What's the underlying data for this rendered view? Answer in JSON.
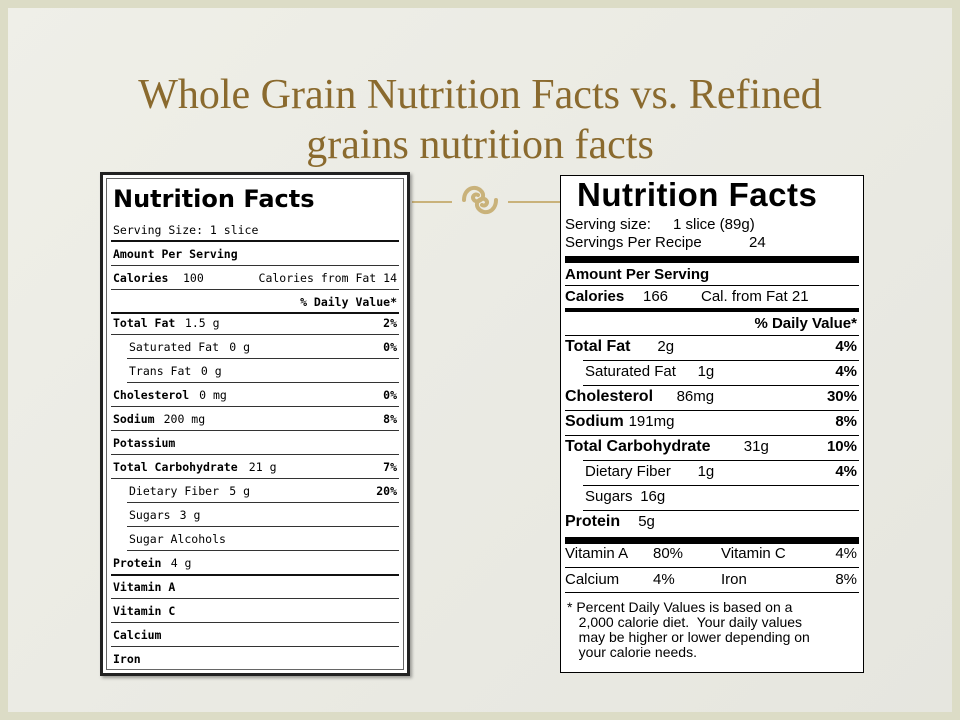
{
  "slide": {
    "title_line1": "Whole Grain Nutrition Facts vs. Refined",
    "title_line2": "grains nutrition facts",
    "divider_icon": "",
    "divider_icon_name": "ornament-icon",
    "accent_color": "#c9b27a",
    "title_color": "#8a6a2e"
  },
  "left_label": {
    "title": "Nutrition Facts",
    "serving_size": "Serving Size: 1 slice",
    "amount_per_serving": "Amount Per Serving",
    "calories_label": "Calories",
    "calories_value": "100",
    "calories_from_fat": "Calories from Fat  14",
    "daily_value_header": "% Daily Value*",
    "rows": [
      {
        "label": "Total Fat",
        "amount": "1.5 g",
        "dv": "2%"
      },
      {
        "label": "Saturated Fat",
        "amount": "0 g",
        "dv": "0%"
      },
      {
        "label": "Trans Fat",
        "amount": "0 g",
        "dv": ""
      },
      {
        "label": "Cholesterol",
        "amount": "0 mg",
        "dv": "0%"
      },
      {
        "label": "Sodium",
        "amount": "200 mg",
        "dv": "8%"
      },
      {
        "label": "Potassium",
        "amount": "",
        "dv": ""
      },
      {
        "label": "Total Carbohydrate",
        "amount": "21 g",
        "dv": "7%"
      },
      {
        "label": "Dietary Fiber",
        "amount": "5 g",
        "dv": "20%"
      },
      {
        "label": "Sugars",
        "amount": "3 g",
        "dv": ""
      },
      {
        "label": "Sugar Alcohols",
        "amount": "",
        "dv": ""
      },
      {
        "label": "Protein",
        "amount": "4 g",
        "dv": ""
      },
      {
        "label": "Vitamin A",
        "amount": "",
        "dv": ""
      },
      {
        "label": "Vitamin C",
        "amount": "",
        "dv": ""
      },
      {
        "label": "Calcium",
        "amount": "",
        "dv": ""
      },
      {
        "label": "Iron",
        "amount": "",
        "dv": ""
      }
    ]
  },
  "right_label": {
    "title": "Nutrition Facts",
    "serving_size_label": "Serving size:",
    "serving_size_value": "1 slice (89g)",
    "servings_label": "Servings Per Recipe",
    "servings_value": "24",
    "amount_per_serving": "Amount Per Serving",
    "calories_label": "Calories",
    "calories_value": "166",
    "cal_from_fat": "Cal. from Fat 21",
    "daily_value_header": "% Daily Value*",
    "rows": [
      {
        "label": "Total Fat",
        "amount": "2g",
        "dv": "4%"
      },
      {
        "label": "Saturated Fat",
        "amount": "1g",
        "dv": "4%"
      },
      {
        "label": "Cholesterol",
        "amount": "86mg",
        "dv": "30%"
      },
      {
        "label": "Sodium",
        "amount": "191mg",
        "dv": "8%"
      },
      {
        "label": "Total Carbohydrate",
        "amount": "31g",
        "dv": "10%"
      },
      {
        "label": "Dietary Fiber",
        "amount": "1g",
        "dv": "4%"
      },
      {
        "label": "Sugars",
        "amount": "16g",
        "dv": ""
      },
      {
        "label": "Protein",
        "amount": "5g",
        "dv": ""
      }
    ],
    "vitamin_a": "Vitamin A",
    "vitamin_a_value": "80%",
    "vitamin_c": "Vitamin C",
    "vitamin_c_value": "4%",
    "calcium": "Calcium",
    "calcium_value": "4%",
    "iron": "Iron",
    "iron_value": "8%",
    "footnote": "* Percent Daily Values is based on a\n   2,000 calorie diet.  Your daily values\n   may be higher or lower depending on\n   your calorie needs."
  }
}
